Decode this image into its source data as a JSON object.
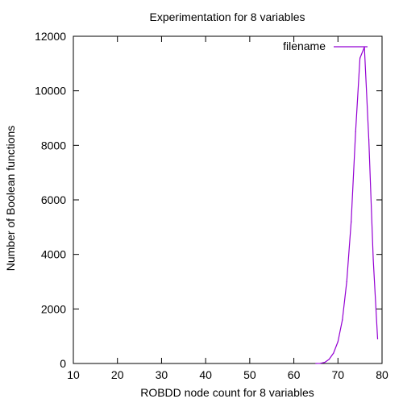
{
  "chart_data": {
    "type": "line",
    "title": "Experimentation for 8 variables",
    "xlabel": "ROBDD node count for 8 variables",
    "ylabel": "Number of Boolean functions",
    "xlim": [
      10,
      80
    ],
    "ylim": [
      0,
      12000
    ],
    "xticks": [
      "10",
      "20",
      "30",
      "40",
      "50",
      "60",
      "70",
      "80"
    ],
    "yticks": [
      "0",
      "2000",
      "4000",
      "6000",
      "8000",
      "10000",
      "12000"
    ],
    "grid": false,
    "legend_position": "top-right",
    "series": [
      {
        "name": "filename",
        "color": "#9400d3",
        "x": [
          65,
          66,
          67,
          68,
          69,
          70,
          71,
          72,
          73,
          74,
          75,
          76,
          77,
          78,
          79
        ],
        "y": [
          0,
          5,
          40,
          150,
          380,
          800,
          1600,
          3000,
          5200,
          8500,
          11200,
          11600,
          8200,
          3800,
          900
        ]
      }
    ]
  }
}
